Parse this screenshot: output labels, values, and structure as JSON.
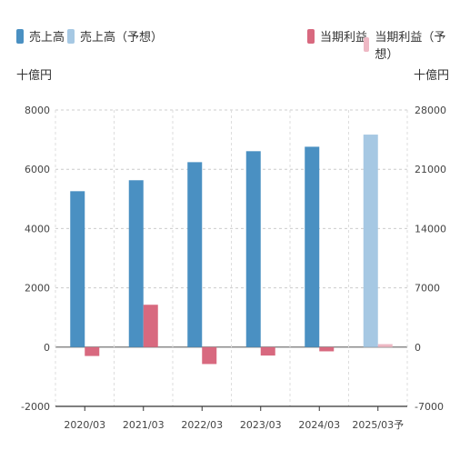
{
  "legend": [
    {
      "label": "売上高",
      "color": "#4a90c2"
    },
    {
      "label": "売上高（予想）",
      "color": "#a6c8e3"
    },
    {
      "label": "当期利益",
      "color": "#d8697f"
    },
    {
      "label": "当期利益（予想）",
      "color": "#eeb8c4"
    }
  ],
  "units": {
    "left": "十億円",
    "right": "十億円"
  },
  "chart_data": {
    "type": "bar",
    "categories": [
      "2020/03",
      "2021/03",
      "2022/03",
      "2023/03",
      "2024/03",
      "2025/03予"
    ],
    "series": [
      {
        "name": "売上高",
        "axis": "left",
        "values": [
          5260,
          5630,
          6240,
          6610,
          6760,
          null
        ],
        "color": "#4a90c2"
      },
      {
        "name": "売上高（予想）",
        "axis": "left",
        "values": [
          null,
          null,
          null,
          null,
          null,
          7170
        ],
        "color": "#a6c8e3"
      },
      {
        "name": "当期利益",
        "axis": "right",
        "values": [
          -1050,
          5000,
          -2000,
          -1000,
          -500,
          null
        ],
        "color": "#d8697f"
      },
      {
        "name": "当期利益（予想）",
        "axis": "right",
        "values": [
          null,
          null,
          null,
          null,
          null,
          350
        ],
        "color": "#eeb8c4"
      }
    ],
    "y_left": {
      "ticks": [
        "8000",
        "6000",
        "4000",
        "2000",
        "0",
        "-2000"
      ],
      "range": [
        -2000,
        8000
      ]
    },
    "y_right": {
      "ticks": [
        "28000",
        "21000",
        "14000",
        "7000",
        "0",
        "-7000"
      ],
      "range": [
        -7000,
        28000
      ]
    },
    "grid": true,
    "legend_position": "top"
  }
}
